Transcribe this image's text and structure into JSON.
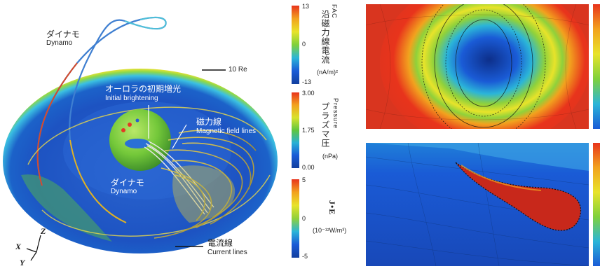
{
  "scene_labels": {
    "dynamo_top_ja": "ダイナモ",
    "dynamo_top_en": "Dynamo",
    "re_label": "10 Re",
    "aurora_ja": "オーロラの初期増光",
    "aurora_en": "Initial brightening",
    "field_ja": "磁力線",
    "field_en": "Magnetic field lines",
    "dynamo_mid_ja": "ダイナモ",
    "dynamo_mid_en": "Dynamo",
    "current_ja": "電流線",
    "current_en": "Current lines"
  },
  "axes": {
    "z": "Z",
    "x": "X",
    "y": "Y"
  },
  "colorbars": [
    {
      "title_en": "FAC",
      "title_ja": "沿磁力線電流",
      "unit": "(nA/m)²",
      "ticks": [
        "13",
        "0",
        "-13"
      ],
      "colors": [
        "#e8341c",
        "#f2a21e",
        "#e8e32a",
        "#7fd13b",
        "#2bb5d8",
        "#1a5bd6",
        "#123f9e"
      ]
    },
    {
      "title_en": "Pressure",
      "title_ja": "プラズマ圧",
      "unit": "(nPa)",
      "ticks": [
        "3.00",
        "1.75",
        "0.00"
      ],
      "colors": [
        "#e8341c",
        "#f2a21e",
        "#d8e22c",
        "#5fc63e",
        "#28b0d5",
        "#1a5bd6",
        "#123f9e"
      ]
    },
    {
      "title_en": "J•E",
      "title_ja": "",
      "unit": "(10⁻¹²W/m³)",
      "ticks": [
        "5",
        "0",
        "-5"
      ],
      "colors": [
        "#e8341c",
        "#f2a21e",
        "#e8e32a",
        "#8fd13b",
        "#2bb5d8",
        "#1a5bd6",
        "#123f9e"
      ]
    }
  ],
  "colors": {
    "disk_blue": "#1f55c4",
    "disk_rim": "#3cc3e0",
    "planet_green": "#7ed03c",
    "bg_red": "#d9351f"
  }
}
